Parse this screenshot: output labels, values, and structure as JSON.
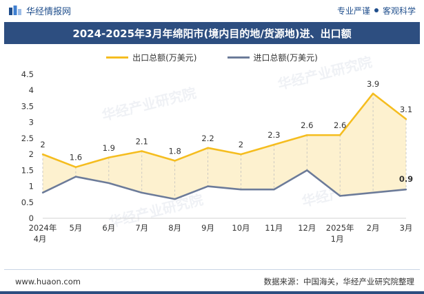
{
  "header": {
    "brand": "华经情报网",
    "right_primary": "专业严谨",
    "right_secondary": "客观科学"
  },
  "title": "2024-2025年3月年绵阳市(境内目的地/货源地)进、出口额",
  "footer": {
    "website": "www.huaon.com",
    "source": "数据来源：中国海关，华经产业研究院整理"
  },
  "watermark": "华经产业研究院",
  "colors": {
    "export": "#f5bd1f",
    "export_fill": "#fdf1cf",
    "import": "#6c7b99",
    "title_bg": "#2d4e80",
    "brand": "#1f4e8c"
  },
  "chart_data": {
    "type": "line",
    "categories": [
      "2024年 4月",
      "5月",
      "6月",
      "7月",
      "8月",
      "9月",
      "10月",
      "11月",
      "12月",
      "2025年 1月",
      "2月",
      "3月"
    ],
    "series": [
      {
        "name": "出口总额(万美元)",
        "values": [
          2,
          1.6,
          1.9,
          2.1,
          1.8,
          2.2,
          2,
          2.3,
          2.6,
          2.6,
          3.9,
          3.1
        ],
        "labels": [
          "2",
          "1.6",
          "1.9",
          "2.1",
          "1.8",
          "2.2",
          "2",
          "2.3",
          "2.6",
          "2.6",
          "3.9",
          "3.1"
        ]
      },
      {
        "name": "进口总额(万美元)",
        "values": [
          0.8,
          1.3,
          1.1,
          0.8,
          0.6,
          1.0,
          0.9,
          0.9,
          1.5,
          0.7,
          0.8,
          0.9
        ],
        "labels": [
          "",
          "",
          "",
          "",
          "",
          "",
          "",
          "",
          "",
          "",
          "",
          "0.9"
        ]
      }
    ],
    "ylim": [
      0,
      4.5
    ],
    "yticks": [
      0,
      0.5,
      1,
      1.5,
      2,
      2.5,
      3,
      3.5,
      4,
      4.5
    ],
    "ytick_labels": [
      "0",
      "0.5",
      "1",
      "1.5",
      "2",
      "2.5",
      "3",
      "3.5",
      "4",
      "4.5"
    ],
    "fill_between": true,
    "legend": "top-center"
  }
}
